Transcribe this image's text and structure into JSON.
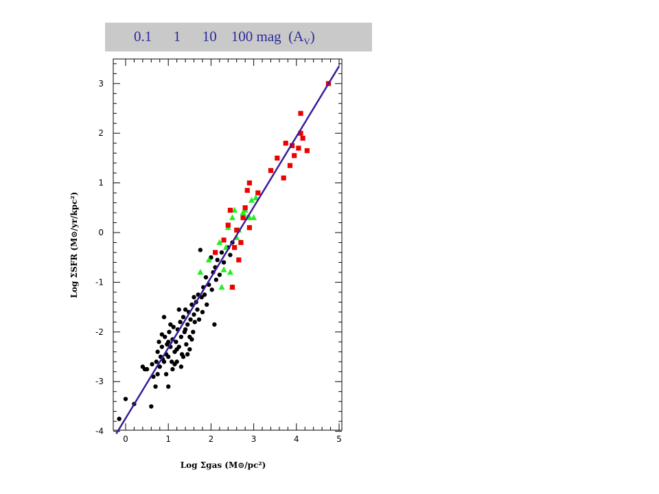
{
  "banner": {
    "text": "0.1      1      10    100 mag  (A",
    "subscript": "V",
    "suffix": ")"
  },
  "colors": {
    "fit_line": "#3a1a9a",
    "black_points": "#000000",
    "green_points": "#22ee22",
    "red_points": "#ee0000",
    "banner_bg": "#c9c9c9",
    "banner_text": "#2a2a9a"
  },
  "chart_data": {
    "type": "scatter",
    "title": "",
    "xlabel": "Log Σgas (M⊙/pc²)",
    "ylabel": "Log ΣSFR (M⊙/yr/kpc²)",
    "xlim": [
      -0.35,
      5.0
    ],
    "ylim": [
      -4.0,
      3.5
    ],
    "xticks": [
      "0",
      "1",
      "2",
      "3",
      "4",
      "5"
    ],
    "yticks": [
      "3",
      "2",
      "1",
      "0",
      "-1",
      "-2",
      "-3",
      "-4"
    ],
    "grid": false,
    "fit_line": {
      "x": [
        -0.22,
        5.0
      ],
      "y": [
        -4.05,
        3.35
      ]
    },
    "series": [
      {
        "marker": "circle",
        "color": "#000000",
        "points": [
          [
            -0.15,
            -3.75
          ],
          [
            0.0,
            -3.35
          ],
          [
            0.2,
            -3.45
          ],
          [
            0.4,
            -2.7
          ],
          [
            0.45,
            -2.75
          ],
          [
            0.5,
            -2.75
          ],
          [
            0.6,
            -3.5
          ],
          [
            0.62,
            -2.65
          ],
          [
            0.65,
            -2.9
          ],
          [
            0.7,
            -3.1
          ],
          [
            0.72,
            -2.6
          ],
          [
            0.75,
            -2.4
          ],
          [
            0.78,
            -2.2
          ],
          [
            0.8,
            -2.7
          ],
          [
            0.82,
            -2.5
          ],
          [
            0.85,
            -2.3
          ],
          [
            0.87,
            -2.55
          ],
          [
            0.9,
            -2.6
          ],
          [
            0.92,
            -2.1
          ],
          [
            0.95,
            -2.45
          ],
          [
            0.97,
            -2.25
          ],
          [
            1.0,
            -2.5
          ],
          [
            1.02,
            -2.0
          ],
          [
            1.05,
            -2.3
          ],
          [
            1.08,
            -2.6
          ],
          [
            1.1,
            -2.15
          ],
          [
            1.12,
            -1.9
          ],
          [
            1.15,
            -2.4
          ],
          [
            1.18,
            -2.2
          ],
          [
            1.2,
            -2.6
          ],
          [
            1.22,
            -1.95
          ],
          [
            1.25,
            -2.3
          ],
          [
            1.28,
            -1.8
          ],
          [
            1.3,
            -2.1
          ],
          [
            1.32,
            -2.45
          ],
          [
            1.35,
            -1.7
          ],
          [
            1.38,
            -2.0
          ],
          [
            1.4,
            -1.55
          ],
          [
            1.42,
            -2.25
          ],
          [
            1.45,
            -1.85
          ],
          [
            1.48,
            -1.6
          ],
          [
            1.5,
            -2.1
          ],
          [
            1.52,
            -1.75
          ],
          [
            1.55,
            -1.45
          ],
          [
            1.58,
            -2.0
          ],
          [
            1.6,
            -1.65
          ],
          [
            1.62,
            -1.8
          ],
          [
            1.65,
            -1.4
          ],
          [
            1.68,
            -1.55
          ],
          [
            1.7,
            -1.25
          ],
          [
            1.72,
            -1.75
          ],
          [
            1.75,
            -0.35
          ],
          [
            1.78,
            -1.3
          ],
          [
            1.8,
            -1.6
          ],
          [
            1.82,
            -1.1
          ],
          [
            1.85,
            -1.25
          ],
          [
            1.88,
            -0.9
          ],
          [
            1.9,
            -1.45
          ],
          [
            1.95,
            -1.05
          ],
          [
            2.0,
            -0.5
          ],
          [
            2.02,
            -1.15
          ],
          [
            2.05,
            -0.8
          ],
          [
            2.08,
            -1.85
          ],
          [
            2.1,
            -0.7
          ],
          [
            2.12,
            -0.95
          ],
          [
            2.15,
            -0.55
          ],
          [
            2.2,
            -0.85
          ],
          [
            2.25,
            -0.4
          ],
          [
            2.3,
            -0.6
          ],
          [
            2.4,
            -0.3
          ],
          [
            2.45,
            -0.45
          ],
          [
            2.5,
            -0.2
          ],
          [
            1.1,
            -2.75
          ],
          [
            0.9,
            -1.7
          ],
          [
            1.0,
            -3.1
          ],
          [
            1.15,
            -2.65
          ],
          [
            1.3,
            -2.7
          ],
          [
            1.45,
            -2.45
          ],
          [
            0.95,
            -2.85
          ],
          [
            1.05,
            -1.85
          ],
          [
            1.25,
            -1.55
          ],
          [
            1.35,
            -2.5
          ],
          [
            1.5,
            -2.35
          ],
          [
            1.6,
            -1.3
          ],
          [
            0.85,
            -2.05
          ],
          [
            0.75,
            -2.85
          ],
          [
            1.4,
            -1.95
          ],
          [
            1.55,
            -2.15
          ],
          [
            1.2,
            -2.35
          ],
          [
            1.0,
            -2.2
          ]
        ]
      },
      {
        "marker": "triangle",
        "color": "#22ee22",
        "points": [
          [
            1.75,
            -0.8
          ],
          [
            1.95,
            -0.55
          ],
          [
            2.2,
            -0.2
          ],
          [
            2.25,
            -1.1
          ],
          [
            2.3,
            -0.75
          ],
          [
            2.35,
            -0.3
          ],
          [
            2.4,
            0.1
          ],
          [
            2.45,
            -0.8
          ],
          [
            2.5,
            0.3
          ],
          [
            2.55,
            0.45
          ],
          [
            2.6,
            -0.1
          ],
          [
            2.65,
            0.05
          ],
          [
            2.7,
            -0.2
          ],
          [
            2.75,
            0.4
          ],
          [
            2.8,
            0.45
          ],
          [
            2.85,
            0.3
          ],
          [
            2.9,
            0.3
          ],
          [
            2.95,
            0.65
          ],
          [
            3.0,
            0.3
          ],
          [
            3.05,
            0.7
          ],
          [
            2.5,
            -1.1
          ]
        ]
      },
      {
        "marker": "square",
        "color": "#ee0000",
        "points": [
          [
            2.1,
            -0.4
          ],
          [
            2.3,
            -0.15
          ],
          [
            2.4,
            0.15
          ],
          [
            2.45,
            0.45
          ],
          [
            2.55,
            -0.3
          ],
          [
            2.6,
            0.05
          ],
          [
            2.65,
            -0.55
          ],
          [
            2.7,
            -0.2
          ],
          [
            2.75,
            0.3
          ],
          [
            2.8,
            0.5
          ],
          [
            2.85,
            0.85
          ],
          [
            2.9,
            0.1
          ],
          [
            2.9,
            1.0
          ],
          [
            3.1,
            0.8
          ],
          [
            3.4,
            1.25
          ],
          [
            3.55,
            1.5
          ],
          [
            3.7,
            1.1
          ],
          [
            3.75,
            1.8
          ],
          [
            3.85,
            1.35
          ],
          [
            3.9,
            1.75
          ],
          [
            3.95,
            1.55
          ],
          [
            4.05,
            1.7
          ],
          [
            4.1,
            2.4
          ],
          [
            4.1,
            2.0
          ],
          [
            4.15,
            1.9
          ],
          [
            4.25,
            1.65
          ],
          [
            4.75,
            3.0
          ],
          [
            2.5,
            -1.1
          ]
        ]
      }
    ]
  }
}
